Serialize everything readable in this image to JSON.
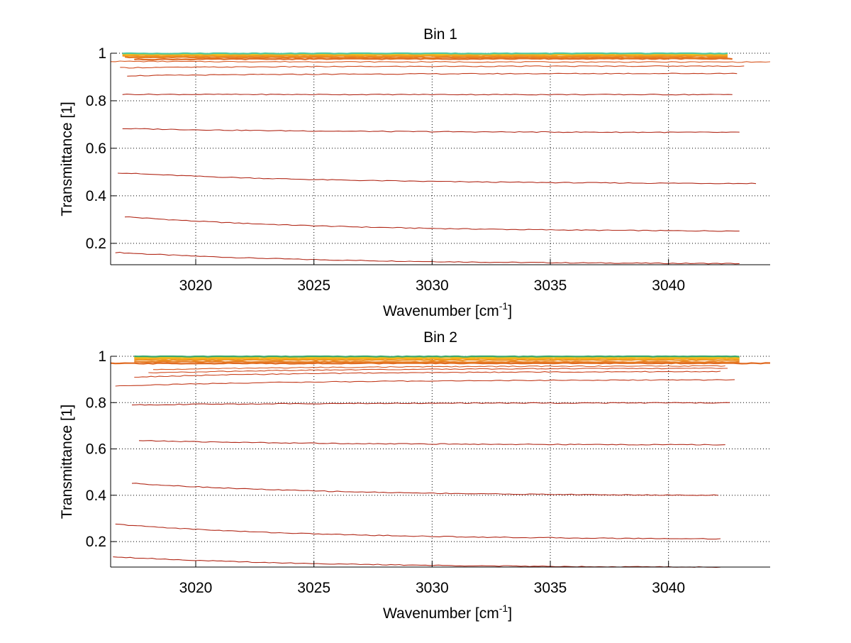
{
  "chart_data": [
    {
      "type": "line",
      "title": "Bin 1",
      "xlabel": "Wavenumber [cm",
      "xlabel_sup": "-1",
      "xlabel_close": "]",
      "ylabel": "Transmittance [1]",
      "xlim": [
        3016.4,
        3044.3
      ],
      "ylim": [
        0.11,
        1.0
      ],
      "xticks": [
        3020,
        3025,
        3030,
        3035,
        3040
      ],
      "xtick_labels": [
        "3020",
        "3025",
        "3030",
        "3035",
        "3040"
      ],
      "yticks": [
        0.2,
        0.4,
        0.6,
        0.8,
        1.0
      ],
      "ytick_labels": [
        "0.2",
        "0.4",
        "0.6",
        "0.8",
        "1"
      ],
      "grid": true,
      "series": [
        {
          "x": [
            3016.6,
            3043.0
          ],
          "y": [
            0.162,
            0.115
          ],
          "color": "#b22a1a"
        },
        {
          "x": [
            3017.0,
            3043.0
          ],
          "y": [
            0.312,
            0.252
          ],
          "color": "#b22a1a"
        },
        {
          "x": [
            3016.7,
            3043.7
          ],
          "y": [
            0.497,
            0.452
          ],
          "color": "#b22a1a"
        },
        {
          "x": [
            3016.9,
            3043.0
          ],
          "y": [
            0.683,
            0.667
          ],
          "color": "#b22a1a"
        },
        {
          "x": [
            3016.9,
            3042.7
          ],
          "y": [
            0.827,
            0.826
          ],
          "color": "#b22a1a"
        },
        {
          "x": [
            3017.1,
            3042.9
          ],
          "y": [
            0.905,
            0.915
          ],
          "color": "#c23a1c"
        },
        {
          "x": [
            3016.8,
            3043.2
          ],
          "y": [
            0.939,
            0.946
          ],
          "color": "#d04a1e"
        },
        {
          "x": [
            3016.4,
            3044.3
          ],
          "y": [
            0.966,
            0.963
          ],
          "color": "#d85820"
        },
        {
          "x": [
            3017.4,
            3042.7
          ],
          "y": [
            0.974,
            0.977
          ],
          "color": "#e06a22"
        },
        {
          "x": [
            3017.0,
            3042.5
          ],
          "y": [
            0.983,
            0.982
          ],
          "color": "#e67c20"
        },
        {
          "x": [
            3016.9,
            3042.5
          ],
          "y": [
            0.988,
            0.988
          ],
          "color": "#ec9020"
        },
        {
          "x": [
            3016.9,
            3042.5
          ],
          "y": [
            0.993,
            0.993
          ],
          "color": "#f2a81e"
        },
        {
          "x": [
            3016.9,
            3042.5
          ],
          "y": [
            0.997,
            0.997
          ],
          "color": "#f2c21c"
        },
        {
          "x": [
            3016.9,
            3042.5
          ],
          "y": [
            0.9995,
            0.9995
          ],
          "color": "#4fc8a0"
        }
      ]
    },
    {
      "type": "line",
      "title": "Bin 2",
      "xlabel": "Wavenumber [cm",
      "xlabel_sup": "-1",
      "xlabel_close": "]",
      "ylabel": "Transmittance [1]",
      "xlim": [
        3016.4,
        3044.3
      ],
      "ylim": [
        0.09,
        1.0
      ],
      "xticks": [
        3020,
        3025,
        3030,
        3035,
        3040
      ],
      "xtick_labels": [
        "3020",
        "3025",
        "3030",
        "3035",
        "3040"
      ],
      "yticks": [
        0.2,
        0.4,
        0.6,
        0.8,
        1.0
      ],
      "ytick_labels": [
        "0.2",
        "0.4",
        "0.6",
        "0.8",
        "1"
      ],
      "grid": true,
      "series": [
        {
          "x": [
            3016.5,
            3042.2
          ],
          "y": [
            0.135,
            0.09
          ],
          "color": "#b22a1a"
        },
        {
          "x": [
            3016.6,
            3042.2
          ],
          "y": [
            0.275,
            0.212
          ],
          "color": "#b22a1a"
        },
        {
          "x": [
            3017.3,
            3042.1
          ],
          "y": [
            0.452,
            0.4
          ],
          "color": "#b22a1a"
        },
        {
          "x": [
            3017.6,
            3042.4
          ],
          "y": [
            0.636,
            0.618
          ],
          "color": "#b22a1a"
        },
        {
          "x": [
            3017.3,
            3042.6
          ],
          "y": [
            0.79,
            0.799
          ],
          "color": "#b22a1a"
        },
        {
          "x": [
            3016.6,
            3042.8
          ],
          "y": [
            0.872,
            0.898
          ],
          "color": "#c23a1c"
        },
        {
          "x": [
            3017.4,
            3042.2
          ],
          "y": [
            0.91,
            0.934
          ],
          "color": "#ca421d"
        },
        {
          "x": [
            3018.0,
            3042.5
          ],
          "y": [
            0.928,
            0.948
          ],
          "color": "#d04a1e"
        },
        {
          "x": [
            3018.2,
            3042.4
          ],
          "y": [
            0.942,
            0.958
          ],
          "color": "#d85820"
        },
        {
          "x": [
            3016.4,
            3044.3
          ],
          "y": [
            0.969,
            0.97
          ],
          "color": "#e06a22"
        },
        {
          "x": [
            3017.4,
            3043.0
          ],
          "y": [
            0.977,
            0.975
          ],
          "color": "#e67c20"
        },
        {
          "x": [
            3017.4,
            3043.0
          ],
          "y": [
            0.984,
            0.984
          ],
          "color": "#ec9020"
        },
        {
          "x": [
            3017.4,
            3043.0
          ],
          "y": [
            0.99,
            0.99
          ],
          "color": "#f2a81e"
        },
        {
          "x": [
            3017.4,
            3043.0
          ],
          "y": [
            0.995,
            0.995
          ],
          "color": "#f2c21c"
        },
        {
          "x": [
            3017.4,
            3043.0
          ],
          "y": [
            0.9995,
            0.9995
          ],
          "color": "#3aa870"
        }
      ]
    }
  ]
}
